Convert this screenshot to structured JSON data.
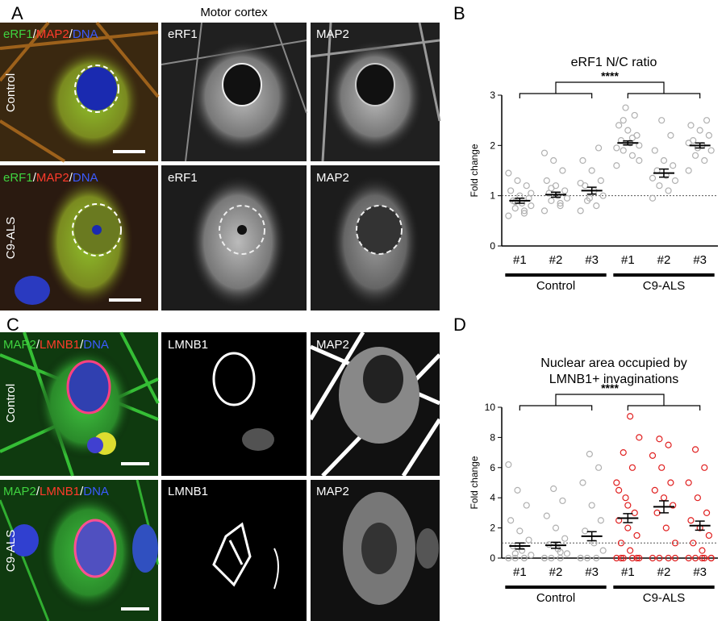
{
  "figure": {
    "panel_labels": [
      "A",
      "B",
      "C",
      "D"
    ],
    "top_title": "Motor cortex",
    "row_labels_a": [
      "Control",
      "C9-ALS"
    ],
    "row_labels_c": [
      "Control",
      "C9-ALS"
    ],
    "merge_a": [
      {
        "text": "eRF1",
        "color": "#3fd33f"
      },
      {
        "text": "/",
        "color": "#ffffff"
      },
      {
        "text": "MAP2",
        "color": "#ff3b2b"
      },
      {
        "text": "/",
        "color": "#ffffff"
      },
      {
        "text": "DNA",
        "color": "#3b5bff"
      }
    ],
    "merge_c": [
      {
        "text": "MAP2",
        "color": "#3fd33f"
      },
      {
        "text": "/",
        "color": "#ffffff"
      },
      {
        "text": "LMNB1",
        "color": "#ff3b2b"
      },
      {
        "text": "/",
        "color": "#ffffff"
      },
      {
        "text": "DNA",
        "color": "#3b5bff"
      }
    ],
    "channel_a": [
      "eRF1",
      "MAP2"
    ],
    "channel_c": [
      "LMNB1",
      "MAP2"
    ]
  },
  "chart_data": [
    {
      "type": "dot",
      "title": [
        "eRF1 N/C ratio"
      ],
      "y_label": "Fold change",
      "ylim": [
        0,
        3
      ],
      "yticks": [
        0,
        1,
        2,
        3
      ],
      "ref_line": 1,
      "significance": "****",
      "categories": [
        "#1",
        "#2",
        "#3",
        "#1",
        "#2",
        "#3"
      ],
      "group_labels": [
        "Control",
        "C9-ALS"
      ],
      "point_colors": [
        "#b0b0b0",
        "#b0b0b0",
        "#b0b0b0",
        "#b0b0b0",
        "#b0b0b0",
        "#b0b0b0"
      ],
      "means": [
        0.9,
        1.02,
        1.1,
        2.05,
        1.45,
        2.0
      ],
      "sem": [
        0.05,
        0.05,
        0.07,
        0.04,
        0.08,
        0.05
      ],
      "points": [
        [
          0.6,
          0.7,
          0.75,
          0.8,
          0.85,
          0.9,
          0.95,
          1.0,
          1.1,
          1.2,
          1.3,
          1.45,
          0.65,
          0.88,
          1.05
        ],
        [
          0.7,
          0.8,
          0.9,
          0.95,
          1.0,
          1.05,
          1.1,
          1.2,
          1.3,
          1.5,
          1.7,
          1.85,
          0.85,
          1.15
        ],
        [
          0.7,
          0.8,
          0.9,
          1.0,
          1.1,
          1.2,
          1.3,
          1.5,
          1.7,
          1.95,
          0.95,
          1.25
        ],
        [
          1.6,
          1.8,
          1.9,
          2.0,
          2.05,
          2.1,
          2.2,
          2.3,
          2.4,
          2.6,
          2.75,
          1.95,
          2.15,
          2.5,
          1.7
        ],
        [
          0.95,
          1.1,
          1.2,
          1.3,
          1.4,
          1.5,
          1.6,
          1.7,
          1.9,
          2.2,
          2.5,
          1.35
        ],
        [
          1.5,
          1.7,
          1.8,
          1.9,
          2.0,
          2.1,
          2.2,
          2.3,
          2.4,
          2.5,
          1.95,
          2.05
        ]
      ]
    },
    {
      "type": "dot",
      "title": [
        "Nuclear area occupied by",
        "LMNB1+ invaginations"
      ],
      "y_label": "Fold change",
      "ylim": [
        0,
        10
      ],
      "yticks": [
        0,
        2,
        4,
        6,
        8,
        10
      ],
      "ref_line": 1,
      "significance": "****",
      "categories": [
        "#1",
        "#2",
        "#3",
        "#1",
        "#2",
        "#3"
      ],
      "group_labels": [
        "Control",
        "C9-ALS"
      ],
      "point_colors": [
        "#b0b0b0",
        "#b0b0b0",
        "#b0b0b0",
        "#e02020",
        "#e02020",
        "#e02020"
      ],
      "means": [
        0.8,
        0.85,
        1.45,
        2.65,
        3.4,
        2.15
      ],
      "sem": [
        0.2,
        0.2,
        0.3,
        0.3,
        0.4,
        0.3
      ],
      "points": [
        [
          0,
          0,
          0,
          0.2,
          0.5,
          0.8,
          1.2,
          1.8,
          2.5,
          3.5,
          4.5,
          6.2,
          0,
          0.3
        ],
        [
          0,
          0,
          0,
          0.3,
          0.6,
          0.9,
          1.3,
          2,
          2.8,
          3.8,
          4.6,
          0,
          0.4
        ],
        [
          0,
          0,
          0,
          0.5,
          1,
          1.8,
          2.5,
          3.5,
          5,
          6,
          6.9,
          0
        ],
        [
          0,
          0,
          0,
          0,
          0.5,
          1,
          1.5,
          2,
          2.5,
          3,
          4,
          5,
          6,
          7,
          8,
          9.4,
          0,
          0,
          3.5,
          4.5
        ],
        [
          0,
          0,
          0,
          1,
          2,
          3,
          3.5,
          4,
          4.5,
          5,
          6,
          6.8,
          7.5,
          7.9,
          0
        ],
        [
          0,
          0,
          0,
          0,
          0.5,
          1,
          1.5,
          2,
          2.5,
          3,
          4,
          5,
          6,
          7.2,
          0,
          0
        ]
      ]
    }
  ]
}
